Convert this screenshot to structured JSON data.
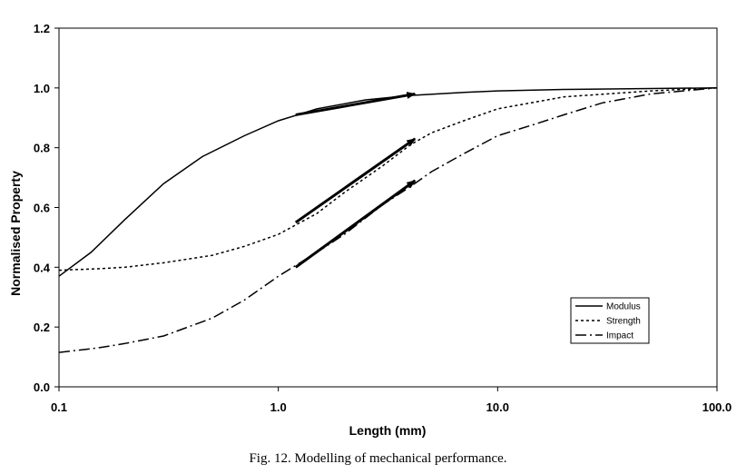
{
  "chart_data": {
    "type": "line",
    "x_scale": "log",
    "xlabel": "Length (mm)",
    "ylabel": "Normalised Property",
    "xlim": [
      0.1,
      100.0
    ],
    "ylim": [
      0.0,
      1.2
    ],
    "x_ticks": [
      0.1,
      1.0,
      10.0,
      100.0
    ],
    "x_tick_labels": [
      "0.1",
      "1.0",
      "10.0",
      "100.0"
    ],
    "y_ticks": [
      0.0,
      0.2,
      0.4,
      0.6,
      0.8,
      1.0,
      1.2
    ],
    "y_tick_labels": [
      "0.0",
      "0.2",
      "0.4",
      "0.6",
      "0.8",
      "1.0",
      "1.2"
    ],
    "grid": false,
    "legend_position": "bottom-right",
    "series": [
      {
        "name": "Modulus",
        "line_style": "solid",
        "points": [
          [
            0.1,
            0.37
          ],
          [
            0.14,
            0.45
          ],
          [
            0.2,
            0.56
          ],
          [
            0.3,
            0.68
          ],
          [
            0.45,
            0.77
          ],
          [
            0.7,
            0.84
          ],
          [
            1.0,
            0.89
          ],
          [
            1.5,
            0.93
          ],
          [
            2.5,
            0.96
          ],
          [
            4.0,
            0.975
          ],
          [
            7.0,
            0.985
          ],
          [
            10.0,
            0.99
          ],
          [
            20.0,
            0.995
          ],
          [
            50.0,
            0.998
          ],
          [
            100.0,
            1.0
          ]
        ]
      },
      {
        "name": "Strength",
        "line_style": "dotted",
        "points": [
          [
            0.1,
            0.39
          ],
          [
            0.15,
            0.395
          ],
          [
            0.2,
            0.4
          ],
          [
            0.3,
            0.415
          ],
          [
            0.5,
            0.44
          ],
          [
            0.7,
            0.47
          ],
          [
            1.0,
            0.51
          ],
          [
            1.5,
            0.58
          ],
          [
            2.0,
            0.65
          ],
          [
            3.0,
            0.74
          ],
          [
            4.0,
            0.81
          ],
          [
            5.0,
            0.85
          ],
          [
            7.0,
            0.89
          ],
          [
            10.0,
            0.93
          ],
          [
            20.0,
            0.97
          ],
          [
            50.0,
            0.99
          ],
          [
            100.0,
            1.0
          ]
        ]
      },
      {
        "name": "Impact",
        "line_style": "dash-dot",
        "points": [
          [
            0.1,
            0.115
          ],
          [
            0.15,
            0.13
          ],
          [
            0.2,
            0.145
          ],
          [
            0.3,
            0.17
          ],
          [
            0.5,
            0.23
          ],
          [
            0.7,
            0.29
          ],
          [
            1.0,
            0.37
          ],
          [
            1.5,
            0.45
          ],
          [
            2.0,
            0.51
          ],
          [
            3.0,
            0.61
          ],
          [
            4.0,
            0.67
          ],
          [
            5.0,
            0.72
          ],
          [
            7.0,
            0.78
          ],
          [
            10.0,
            0.84
          ],
          [
            15.0,
            0.88
          ],
          [
            20.0,
            0.91
          ],
          [
            30.0,
            0.95
          ],
          [
            50.0,
            0.98
          ],
          [
            100.0,
            1.0
          ]
        ]
      }
    ],
    "annotations": [
      {
        "type": "arrow",
        "from": [
          1.2,
          0.91
        ],
        "to": [
          4.2,
          0.98
        ]
      },
      {
        "type": "arrow",
        "from": [
          1.2,
          0.55
        ],
        "to": [
          4.2,
          0.83
        ]
      },
      {
        "type": "arrow",
        "from": [
          1.2,
          0.4
        ],
        "to": [
          4.2,
          0.69
        ]
      }
    ]
  },
  "caption": "Fig. 12. Modelling of mechanical performance."
}
